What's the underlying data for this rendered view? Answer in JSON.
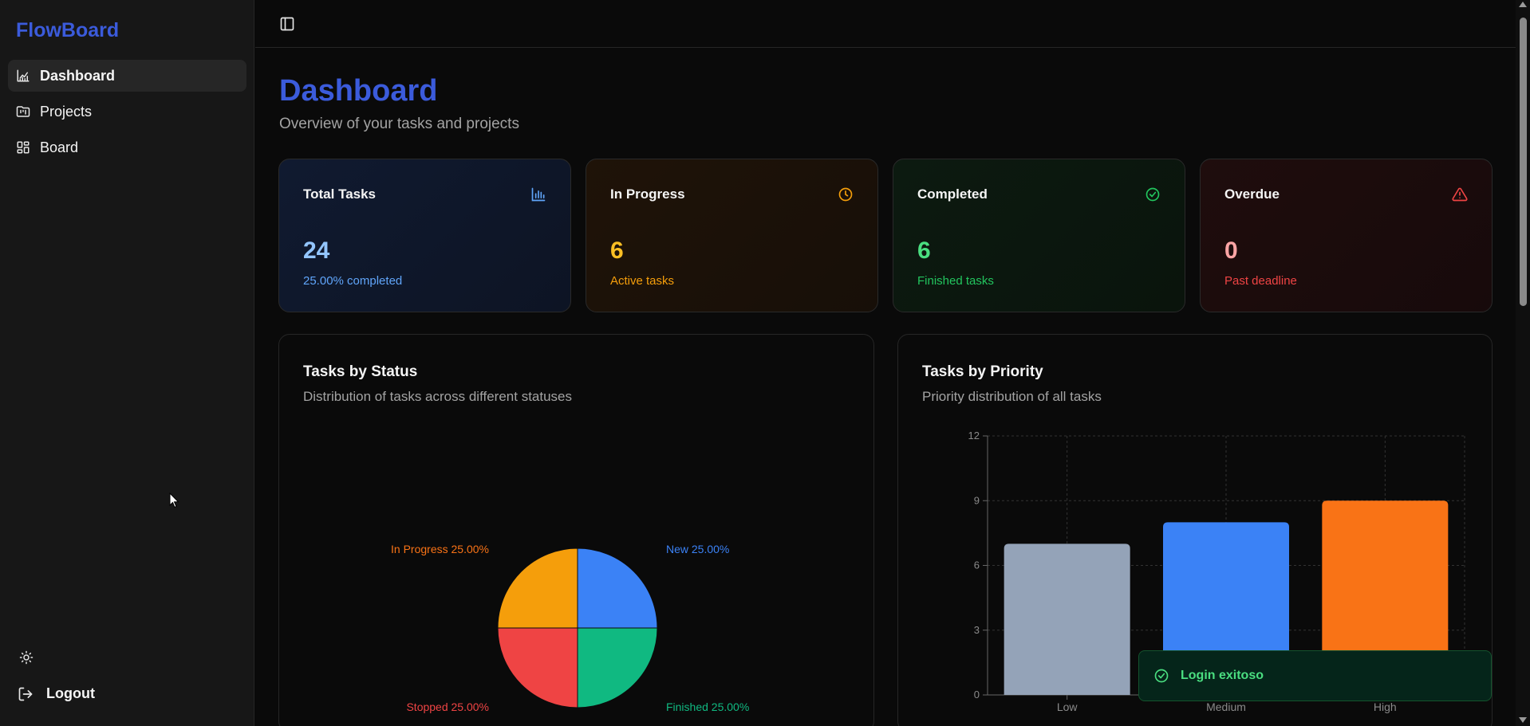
{
  "app": {
    "brand": "FlowBoard"
  },
  "sidebar": {
    "items": [
      {
        "label": "Dashboard",
        "icon": "chart-line-icon",
        "active": true
      },
      {
        "label": "Projects",
        "icon": "folder-kanban-icon",
        "active": false
      },
      {
        "label": "Board",
        "icon": "layout-grid-icon",
        "active": false
      }
    ],
    "theme_icon": "sun-icon",
    "logout_label": "Logout"
  },
  "header": {
    "title": "Dashboard",
    "subtitle": "Overview of your tasks and projects"
  },
  "stats": [
    {
      "label": "Total Tasks",
      "value": "24",
      "note": "25.00% completed",
      "icon": "bar-chart-icon",
      "accent": "#60a5fa",
      "value_color": "#93c5fd"
    },
    {
      "label": "In Progress",
      "value": "6",
      "note": "Active tasks",
      "icon": "clock-icon",
      "accent": "#f59e0b",
      "value_color": "#fbbf24"
    },
    {
      "label": "Completed",
      "value": "6",
      "note": "Finished tasks",
      "icon": "check-circle-icon",
      "accent": "#22c55e",
      "value_color": "#4ade80"
    },
    {
      "label": "Overdue",
      "value": "0",
      "note": "Past deadline",
      "icon": "alert-triangle-icon",
      "accent": "#ef4444",
      "value_color": "#fca5a5"
    }
  ],
  "status_panel": {
    "title": "Tasks by Status",
    "subtitle": "Distribution of tasks across different statuses"
  },
  "priority_panel": {
    "title": "Tasks by Priority",
    "subtitle": "Priority distribution of all tasks"
  },
  "chart_data": [
    {
      "type": "pie",
      "title": "Tasks by Status",
      "slices": [
        {
          "label": "New 25.00%",
          "value": 25,
          "color": "#3b82f6",
          "label_color": "#3b82f6"
        },
        {
          "label": "Finished 25.00%",
          "value": 25,
          "color": "#10b981",
          "label_color": "#10b981"
        },
        {
          "label": "Stopped 25.00%",
          "value": 25,
          "color": "#ef4444",
          "label_color": "#ef4444"
        },
        {
          "label": "In Progress 25.00%",
          "value": 25,
          "color": "#f59e0b",
          "label_color": "#f97316"
        }
      ]
    },
    {
      "type": "bar",
      "title": "Tasks by Priority",
      "categories": [
        "Low",
        "Medium",
        "High"
      ],
      "values": [
        7,
        8,
        9
      ],
      "colors": [
        "#94a3b8",
        "#3b82f6",
        "#f97316"
      ],
      "yticks": [
        "0",
        "3",
        "6",
        "9",
        "12"
      ],
      "ylim": [
        0,
        12
      ],
      "grid": true
    }
  ],
  "toast": {
    "message": "Login exitoso",
    "icon": "check-circle-icon"
  }
}
